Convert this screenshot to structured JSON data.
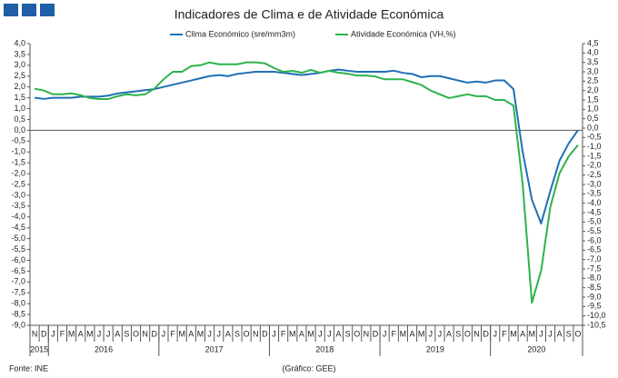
{
  "chart_data": {
    "type": "line",
    "title": "Indicadores de Clima e de Atividade Económica",
    "footer_left": "Fonte: INE",
    "footer_center": "(Gráfico: GEE)",
    "categories": [
      "N",
      "D",
      "J",
      "F",
      "M",
      "A",
      "M",
      "J",
      "J",
      "A",
      "S",
      "O",
      "N",
      "D",
      "J",
      "F",
      "M",
      "A",
      "M",
      "J",
      "J",
      "A",
      "S",
      "O",
      "N",
      "D",
      "J",
      "F",
      "M",
      "A",
      "M",
      "J",
      "J",
      "A",
      "S",
      "O",
      "N",
      "D",
      "J",
      "F",
      "M",
      "A",
      "M",
      "J",
      "J",
      "A",
      "S",
      "O",
      "N",
      "D",
      "J",
      "F",
      "M",
      "A",
      "M",
      "J",
      "J",
      "A",
      "S",
      "O"
    ],
    "years": [
      "2015",
      "2016",
      "2017",
      "2018",
      "2019",
      "2020"
    ],
    "series": [
      {
        "name": "Clima Económico (sre/mm3m)",
        "color": "#1f6fb5",
        "values": [
          1.5,
          1.45,
          1.5,
          1.5,
          1.5,
          1.55,
          1.55,
          1.55,
          1.6,
          1.7,
          1.75,
          1.8,
          1.85,
          1.9,
          2.0,
          2.1,
          2.2,
          2.3,
          2.4,
          2.5,
          2.55,
          2.5,
          2.6,
          2.65,
          2.7,
          2.7,
          2.7,
          2.65,
          2.6,
          2.55,
          2.6,
          2.65,
          2.75,
          2.8,
          2.75,
          2.7,
          2.7,
          2.7,
          2.7,
          2.75,
          2.65,
          2.6,
          2.45,
          2.5,
          2.5,
          2.4,
          2.3,
          2.2,
          2.25,
          2.2,
          2.3,
          2.3,
          1.9,
          -1.0,
          -3.2,
          -4.3,
          -2.8,
          -1.4,
          -0.6,
          0.0
        ]
      },
      {
        "name": "Atividade Económica (VH,%)",
        "color": "#2db34a",
        "axis": "y2",
        "values": [
          2.1,
          2.0,
          1.8,
          1.8,
          1.85,
          1.75,
          1.6,
          1.55,
          1.55,
          1.7,
          1.8,
          1.75,
          1.8,
          2.1,
          2.6,
          3.0,
          3.0,
          3.3,
          3.35,
          3.5,
          3.4,
          3.4,
          3.4,
          3.5,
          3.5,
          3.45,
          3.2,
          3.0,
          3.05,
          2.95,
          3.1,
          2.95,
          3.05,
          2.95,
          2.9,
          2.8,
          2.8,
          2.75,
          2.6,
          2.6,
          2.6,
          2.45,
          2.3,
          2.0,
          1.8,
          1.6,
          1.7,
          1.8,
          1.7,
          1.7,
          1.5,
          1.5,
          1.2,
          -3.0,
          -9.3,
          -7.6,
          -4.2,
          -2.4,
          -1.5,
          -0.9
        ]
      }
    ],
    "ylim": [
      -9,
      4
    ],
    "yticks": [
      {
        "value": 4,
        "label": "4,0"
      },
      {
        "value": 3.5,
        "label": "3,5"
      },
      {
        "value": 3,
        "label": "3,0"
      },
      {
        "value": 2.5,
        "label": "2,5"
      },
      {
        "value": 2,
        "label": "2,0"
      },
      {
        "value": 1.5,
        "label": "1,5"
      },
      {
        "value": 1,
        "label": "1,0"
      },
      {
        "value": 0.5,
        "label": "0,5"
      },
      {
        "value": 0,
        "label": "0,0"
      },
      {
        "value": -0.5,
        "label": "-0,5"
      },
      {
        "value": -1,
        "label": "-1,0"
      },
      {
        "value": -1.5,
        "label": "-1,5"
      },
      {
        "value": -2,
        "label": "-2,0"
      },
      {
        "value": -2.5,
        "label": "-2,5"
      },
      {
        "value": -3,
        "label": "-3,0"
      },
      {
        "value": -3.5,
        "label": "-3,5"
      },
      {
        "value": -4,
        "label": "-4,0"
      },
      {
        "value": -4.5,
        "label": "-4,5"
      },
      {
        "value": -5,
        "label": "-5,0"
      },
      {
        "value": -5.5,
        "label": "-5,5"
      },
      {
        "value": -6,
        "label": "-6,0"
      },
      {
        "value": -6.5,
        "label": "-6,5"
      },
      {
        "value": -7,
        "label": "-7,0"
      },
      {
        "value": -7.5,
        "label": "-7,5"
      },
      {
        "value": -8,
        "label": "-8,0"
      },
      {
        "value": -8.5,
        "label": "-8,5"
      },
      {
        "value": -9,
        "label": "-9,0"
      }
    ],
    "y2lim": [
      -10.5,
      4.5
    ],
    "y2ticks": [
      {
        "value": 4.5,
        "label": "4,5"
      },
      {
        "value": 4,
        "label": "4,0"
      },
      {
        "value": 3.5,
        "label": "3,5"
      },
      {
        "value": 3,
        "label": "3,0"
      },
      {
        "value": 2.5,
        "label": "2,5"
      },
      {
        "value": 2,
        "label": "2,0"
      },
      {
        "value": 1.5,
        "label": "1,5"
      },
      {
        "value": 1,
        "label": "1,0"
      },
      {
        "value": 0.5,
        "label": "0,5"
      },
      {
        "value": 0,
        "label": "0,0"
      },
      {
        "value": -0.5,
        "label": "-0,5"
      },
      {
        "value": -1,
        "label": "-1,0"
      },
      {
        "value": -1.5,
        "label": "-1,5"
      },
      {
        "value": -2,
        "label": "-2,0"
      },
      {
        "value": -2.5,
        "label": "-2,5"
      },
      {
        "value": -3,
        "label": "-3,0"
      },
      {
        "value": -3.5,
        "label": "-3,5"
      },
      {
        "value": -4,
        "label": "-4,0"
      },
      {
        "value": -4.5,
        "label": "-4,5"
      },
      {
        "value": -5,
        "label": "-5,0"
      },
      {
        "value": -5.5,
        "label": "-5,5"
      },
      {
        "value": -6,
        "label": "-6,0"
      },
      {
        "value": -6.5,
        "label": "-6,5"
      },
      {
        "value": -7,
        "label": "-7,0"
      },
      {
        "value": -7.5,
        "label": "-7,5"
      },
      {
        "value": -8,
        "label": "-8,0"
      },
      {
        "value": -8.5,
        "label": "-8,5"
      },
      {
        "value": -9,
        "label": "-9,0"
      },
      {
        "value": -9.5,
        "label": "-9,5"
      },
      {
        "value": -10,
        "label": "-10,0"
      },
      {
        "value": -10.5,
        "label": "-10,5"
      }
    ]
  }
}
